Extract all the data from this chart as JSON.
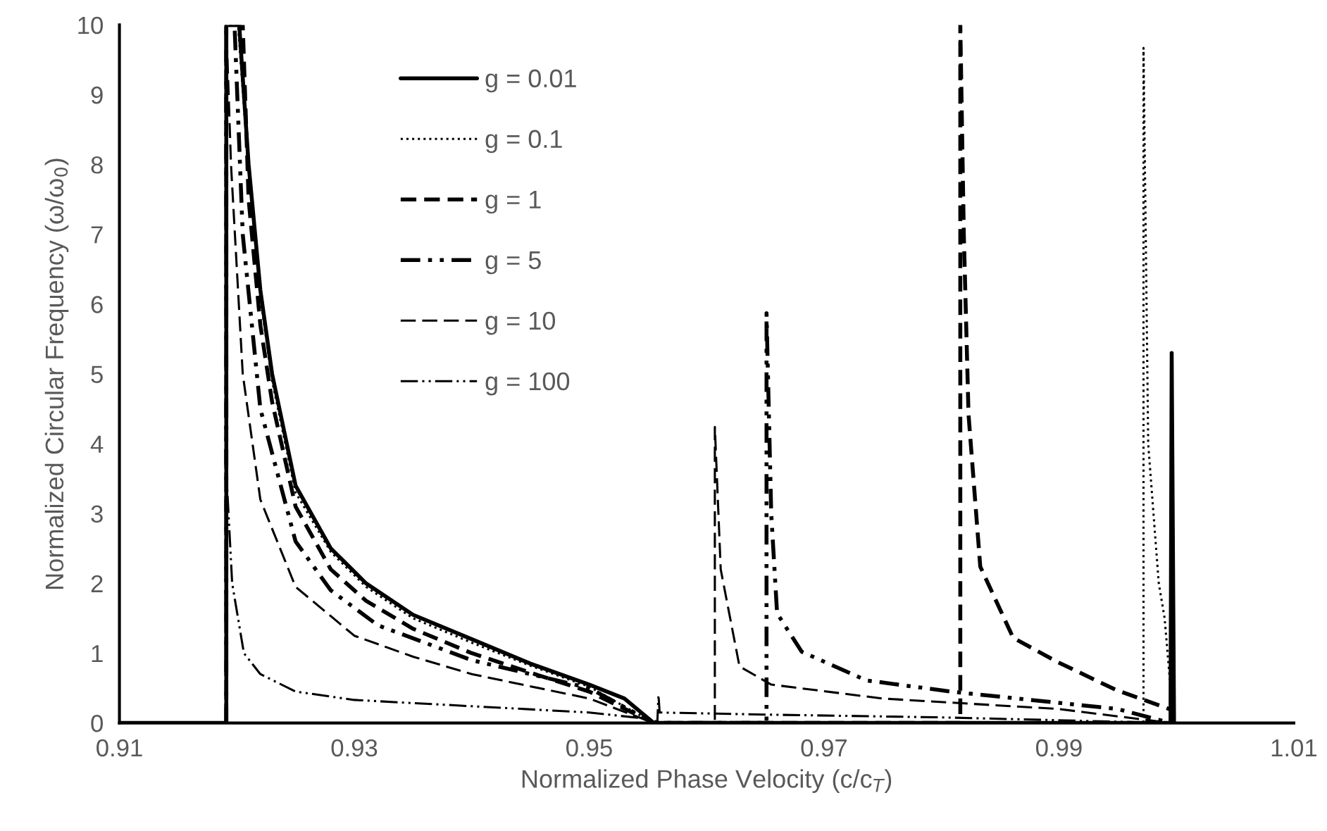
{
  "chart_data": {
    "type": "line",
    "xlabel": "Normalized Phase Velocity (c/c$_{T}$)",
    "ylabel": "Normalized Circular Frequency (ω/ω$_{0}$)",
    "xlim": [
      0.91,
      1.01
    ],
    "xticks": [
      0.91,
      0.93,
      0.95,
      0.97,
      0.99,
      1.01
    ],
    "ylim": [
      0,
      10
    ],
    "yticks": [
      0,
      1,
      2,
      3,
      4,
      5,
      6,
      7,
      8,
      9,
      10
    ],
    "grid": false,
    "legend": "top left",
    "marker": "none",
    "series": [
      {
        "name": "g = 0.01",
        "color": "#000000",
        "line_style": "solid",
        "x": [
          0.91,
          0.9191,
          0.9191,
          0.9202,
          0.921,
          0.922,
          0.923,
          0.925,
          0.928,
          0.931,
          0.935,
          0.94,
          0.945,
          0.95,
          0.953,
          0.9555,
          0.9995,
          0.9996,
          0.9998
        ],
        "values": [
          0,
          0,
          10,
          10,
          8,
          6.2,
          5.0,
          3.4,
          2.5,
          2.0,
          1.55,
          1.2,
          0.85,
          0.55,
          0.35,
          0,
          0,
          5.3,
          0
        ]
      },
      {
        "name": "g = 0.1",
        "color": "#000000",
        "line_style": "dotted",
        "x": [
          0.9191,
          0.9191,
          0.9201,
          0.921,
          0.922,
          0.923,
          0.925,
          0.928,
          0.931,
          0.935,
          0.94,
          0.945,
          0.95,
          0.9555,
          0.9972,
          0.9972,
          0.9976,
          0.9985,
          0.999,
          0.9996
        ],
        "values": [
          0,
          10,
          10,
          7.9,
          6.1,
          4.9,
          3.3,
          2.45,
          1.95,
          1.5,
          1.15,
          0.82,
          0.52,
          0,
          0,
          9.67,
          4.0,
          2.0,
          1.5,
          0.3
        ]
      },
      {
        "name": "g = 1",
        "color": "#000000",
        "line_style": "dashed",
        "x": [
          0.9191,
          0.9191,
          0.9205,
          0.921,
          0.922,
          0.923,
          0.925,
          0.928,
          0.931,
          0.935,
          0.94,
          0.945,
          0.95,
          0.9555,
          0.9816,
          0.9816,
          0.9819,
          0.9823,
          0.9833,
          0.9861,
          0.9898,
          0.9949,
          0.9994
        ],
        "values": [
          0,
          10,
          10,
          7.5,
          5.7,
          4.6,
          3.1,
          2.2,
          1.75,
          1.35,
          1.0,
          0.72,
          0.45,
          0,
          0,
          10,
          7,
          4.42,
          2.24,
          1.22,
          0.88,
          0.47,
          0.2
        ]
      },
      {
        "name": "g = 5",
        "color": "#000000",
        "line_style": "dashed",
        "x": [
          0.9191,
          0.9191,
          0.9198,
          0.9205,
          0.922,
          0.925,
          0.928,
          0.932,
          0.94,
          0.95,
          0.9555,
          0.9651,
          0.9651,
          0.9655,
          0.966,
          0.9681,
          0.9736,
          0.9808,
          0.995,
          0.9995
        ],
        "values": [
          0,
          10,
          10,
          7,
          4.5,
          2.6,
          1.9,
          1.4,
          0.9,
          0.5,
          0,
          0,
          5.87,
          3.0,
          1.57,
          1.02,
          0.61,
          0.45,
          0.2,
          0
        ]
      },
      {
        "name": "g = 10",
        "color": "#000000",
        "line_style": "dashed",
        "x": [
          0.9191,
          0.9191,
          0.9195,
          0.9205,
          0.922,
          0.925,
          0.93,
          0.935,
          0.94,
          0.95,
          0.9555,
          0.9607,
          0.9607,
          0.9612,
          0.9628,
          0.9655,
          0.975,
          0.99,
          0.9995
        ],
        "values": [
          0,
          10,
          8,
          5,
          3.2,
          1.95,
          1.25,
          0.95,
          0.7,
          0.35,
          0,
          0,
          4.24,
          2.2,
          0.81,
          0.55,
          0.35,
          0.2,
          0
        ]
      },
      {
        "name": "g = 100",
        "color": "#000000",
        "line_style": "dashed",
        "x": [
          0.9191,
          0.9191,
          0.9196,
          0.9206,
          0.922,
          0.925,
          0.93,
          0.94,
          0.95,
          0.9555,
          0.9558,
          0.9559,
          0.956,
          0.965,
          0.98,
          0.9995
        ],
        "values": [
          0,
          3.6,
          2.0,
          1.0,
          0.7,
          0.45,
          0.33,
          0.24,
          0.15,
          0.05,
          0,
          0.4,
          0.15,
          0.12,
          0.08,
          0
        ]
      }
    ]
  }
}
